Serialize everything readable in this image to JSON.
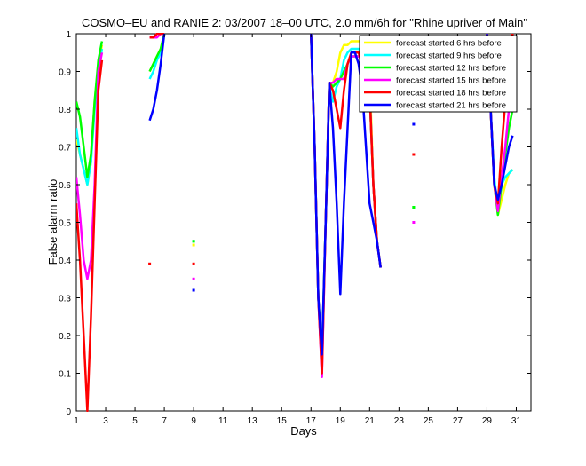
{
  "chart_data": {
    "type": "line",
    "title": "COSMO–EU and RANIE 2: 03/2007 18–00 UTC, 2.0 mm/6h for \"Rhine upriver of Main\"",
    "xlabel": "Days",
    "ylabel": "False alarm ratio",
    "xlim": [
      1,
      32
    ],
    "ylim": [
      0,
      1
    ],
    "xticks": [
      1,
      3,
      5,
      7,
      9,
      11,
      13,
      15,
      17,
      19,
      21,
      23,
      25,
      27,
      29,
      31
    ],
    "yticks": [
      0,
      0.1,
      0.2,
      0.3,
      0.4,
      0.5,
      0.6,
      0.7,
      0.8,
      0.9,
      1
    ],
    "xtick_labels": [
      "1",
      "3",
      "5",
      "7",
      "9",
      "11",
      "13",
      "15",
      "17",
      "19",
      "21",
      "23",
      "25",
      "27",
      "29",
      "31"
    ],
    "ytick_labels": [
      "0",
      "0.1",
      "0.2",
      "0.3",
      "0.4",
      "0.5",
      "0.6",
      "0.7",
      "0.8",
      "0.9",
      "1"
    ],
    "grid": false,
    "legend_position": "top-right",
    "series": [
      {
        "name": "forecast started 6 hrs before",
        "color": "#ffff00",
        "segments": [
          [
            [
              1,
              0.72
            ],
            [
              1.25,
              0.68
            ],
            [
              1.5,
              0.64
            ],
            [
              1.75,
              0.6
            ],
            [
              2,
              0.66
            ],
            [
              2.25,
              0.82
            ],
            [
              2.5,
              0.92
            ],
            [
              2.75,
              0.97
            ]
          ],
          [
            [
              6,
              0.9
            ],
            [
              6.25,
              0.92
            ],
            [
              6.5,
              0.94
            ],
            [
              6.75,
              0.96
            ],
            [
              7,
              1.0
            ]
          ],
          [
            [
              17,
              1.0
            ],
            [
              17.25,
              0.7
            ],
            [
              17.5,
              0.3
            ],
            [
              17.75,
              0.14
            ],
            [
              18,
              0.5
            ],
            [
              18.25,
              0.87
            ],
            [
              18.5,
              0.87
            ],
            [
              18.75,
              0.9
            ],
            [
              19,
              0.95
            ],
            [
              19.25,
              0.97
            ],
            [
              19.5,
              0.97
            ],
            [
              19.75,
              0.98
            ],
            [
              20,
              0.98
            ],
            [
              20.25,
              0.98
            ],
            [
              20.5,
              0.98
            ],
            [
              20.75,
              0.95
            ],
            [
              21,
              0.9
            ],
            [
              21.25,
              0.6
            ],
            [
              21.5,
              0.45
            ],
            [
              21.75,
              0.38
            ]
          ],
          [
            [
              29,
              1.0
            ],
            [
              29.25,
              0.8
            ],
            [
              29.5,
              0.6
            ],
            [
              29.75,
              0.52
            ],
            [
              30,
              0.56
            ],
            [
              30.25,
              0.6
            ],
            [
              30.5,
              0.63
            ],
            [
              30.75,
              0.64
            ]
          ]
        ],
        "points": [
          [
            9,
            0.44
          ],
          [
            24,
            0.54
          ]
        ]
      },
      {
        "name": "forecast started 9 hrs before",
        "color": "#00ffff",
        "segments": [
          [
            [
              1,
              0.75
            ],
            [
              1.25,
              0.68
            ],
            [
              1.5,
              0.64
            ],
            [
              1.75,
              0.6
            ],
            [
              2,
              0.66
            ],
            [
              2.25,
              0.8
            ],
            [
              2.5,
              0.9
            ],
            [
              2.75,
              0.96
            ]
          ],
          [
            [
              6,
              0.88
            ],
            [
              6.25,
              0.9
            ],
            [
              6.5,
              0.93
            ],
            [
              6.75,
              0.95
            ],
            [
              7,
              1.0
            ]
          ],
          [
            [
              17,
              1.0
            ],
            [
              17.25,
              0.7
            ],
            [
              17.5,
              0.3
            ],
            [
              17.75,
              0.14
            ],
            [
              18,
              0.5
            ],
            [
              18.25,
              0.86
            ],
            [
              18.5,
              0.82
            ],
            [
              18.75,
              0.86
            ],
            [
              19,
              0.88
            ],
            [
              19.25,
              0.93
            ],
            [
              19.5,
              0.95
            ],
            [
              19.75,
              0.96
            ],
            [
              20,
              0.96
            ],
            [
              20.25,
              0.96
            ],
            [
              20.5,
              0.95
            ],
            [
              20.75,
              0.92
            ],
            [
              21,
              0.85
            ],
            [
              21.25,
              0.6
            ],
            [
              21.5,
              0.45
            ],
            [
              21.75,
              0.38
            ]
          ],
          [
            [
              29,
              1.0
            ],
            [
              29.25,
              0.8
            ],
            [
              29.5,
              0.62
            ],
            [
              29.75,
              0.53
            ],
            [
              30,
              0.6
            ],
            [
              30.25,
              0.62
            ],
            [
              30.5,
              0.63
            ],
            [
              30.75,
              0.64
            ]
          ]
        ],
        "points": [
          [
            9,
            0.45
          ],
          [
            24,
            0.54
          ]
        ]
      },
      {
        "name": "forecast started 12 hrs before",
        "color": "#00ff00",
        "segments": [
          [
            [
              1,
              0.82
            ],
            [
              1.25,
              0.78
            ],
            [
              1.5,
              0.7
            ],
            [
              1.75,
              0.62
            ],
            [
              2,
              0.68
            ],
            [
              2.25,
              0.82
            ],
            [
              2.5,
              0.93
            ],
            [
              2.75,
              0.98
            ]
          ],
          [
            [
              6,
              0.9
            ],
            [
              6.25,
              0.92
            ],
            [
              6.5,
              0.94
            ],
            [
              6.75,
              0.96
            ],
            [
              7,
              1.0
            ]
          ],
          [
            [
              17,
              1.0
            ],
            [
              17.25,
              0.7
            ],
            [
              17.5,
              0.3
            ],
            [
              17.75,
              0.14
            ],
            [
              18,
              0.5
            ],
            [
              18.25,
              0.87
            ],
            [
              18.5,
              0.86
            ],
            [
              18.75,
              0.87
            ],
            [
              19,
              0.88
            ],
            [
              19.25,
              0.9
            ],
            [
              19.5,
              0.92
            ],
            [
              19.75,
              0.94
            ],
            [
              20,
              0.94
            ],
            [
              20.25,
              0.94
            ],
            [
              20.5,
              0.93
            ],
            [
              20.75,
              0.9
            ],
            [
              21,
              0.85
            ],
            [
              21.25,
              0.6
            ],
            [
              21.5,
              0.45
            ],
            [
              21.75,
              0.38
            ]
          ],
          [
            [
              29,
              1.0
            ],
            [
              29.25,
              0.8
            ],
            [
              29.5,
              0.6
            ],
            [
              29.75,
              0.52
            ],
            [
              30,
              0.6
            ],
            [
              30.25,
              0.68
            ],
            [
              30.5,
              0.75
            ],
            [
              30.75,
              0.8
            ]
          ]
        ],
        "points": [
          [
            9,
            0.45
          ],
          [
            24,
            0.54
          ]
        ]
      },
      {
        "name": "forecast started 15 hrs before",
        "color": "#ff00ff",
        "segments": [
          [
            [
              1,
              0.62
            ],
            [
              1.25,
              0.52
            ],
            [
              1.5,
              0.4
            ],
            [
              1.75,
              0.35
            ],
            [
              2,
              0.4
            ],
            [
              2.25,
              0.6
            ],
            [
              2.5,
              0.9
            ],
            [
              2.75,
              0.95
            ]
          ],
          [
            [
              6,
              0.99
            ],
            [
              6.25,
              0.99
            ],
            [
              6.5,
              0.99
            ],
            [
              6.75,
              1.0
            ],
            [
              7,
              1.0
            ]
          ],
          [
            [
              17,
              1.0
            ],
            [
              17.25,
              0.7
            ],
            [
              17.5,
              0.3
            ],
            [
              17.75,
              0.09
            ],
            [
              18,
              0.5
            ],
            [
              18.25,
              0.87
            ],
            [
              18.5,
              0.87
            ],
            [
              18.75,
              0.88
            ],
            [
              19,
              0.88
            ],
            [
              19.25,
              0.88
            ],
            [
              19.5,
              0.92
            ],
            [
              19.75,
              0.94
            ],
            [
              20,
              0.94
            ],
            [
              20.25,
              0.94
            ],
            [
              20.5,
              0.93
            ],
            [
              20.75,
              0.9
            ],
            [
              21,
              0.85
            ],
            [
              21.25,
              0.6
            ],
            [
              21.5,
              0.45
            ],
            [
              21.75,
              0.38
            ]
          ],
          [
            [
              29,
              1.0
            ],
            [
              29.25,
              0.8
            ],
            [
              29.5,
              0.6
            ],
            [
              29.75,
              0.53
            ],
            [
              30,
              0.62
            ],
            [
              30.25,
              0.7
            ],
            [
              30.5,
              0.8
            ],
            [
              30.75,
              0.9
            ]
          ]
        ],
        "points": [
          [
            9,
            0.35
          ],
          [
            24,
            0.5
          ]
        ]
      },
      {
        "name": "forecast started 18 hrs before",
        "color": "#ff0000",
        "segments": [
          [
            [
              1,
              0.55
            ],
            [
              1.25,
              0.4
            ],
            [
              1.5,
              0.2
            ],
            [
              1.75,
              0.0
            ],
            [
              2,
              0.25
            ],
            [
              2.25,
              0.55
            ],
            [
              2.5,
              0.85
            ],
            [
              2.75,
              0.93
            ]
          ],
          [
            [
              6,
              0.99
            ],
            [
              6.25,
              0.99
            ],
            [
              6.5,
              1.0
            ],
            [
              6.75,
              1.0
            ],
            [
              7,
              1.0
            ]
          ],
          [
            [
              17,
              1.0
            ],
            [
              17.25,
              0.7
            ],
            [
              17.5,
              0.3
            ],
            [
              17.75,
              0.1
            ],
            [
              18,
              0.5
            ],
            [
              18.25,
              0.87
            ],
            [
              18.5,
              0.85
            ],
            [
              18.75,
              0.8
            ],
            [
              19,
              0.75
            ],
            [
              19.25,
              0.85
            ],
            [
              19.5,
              0.92
            ],
            [
              19.75,
              0.95
            ],
            [
              20,
              0.95
            ],
            [
              20.25,
              0.95
            ],
            [
              20.5,
              0.92
            ],
            [
              20.75,
              0.88
            ],
            [
              21,
              0.85
            ],
            [
              21.25,
              0.6
            ],
            [
              21.5,
              0.45
            ],
            [
              21.75,
              0.38
            ]
          ],
          [
            [
              29,
              1.0
            ],
            [
              29.25,
              0.8
            ],
            [
              29.5,
              0.6
            ],
            [
              29.75,
              0.55
            ],
            [
              30,
              0.7
            ],
            [
              30.25,
              0.82
            ],
            [
              30.5,
              0.92
            ],
            [
              30.75,
              1.0
            ]
          ]
        ],
        "points": [
          [
            6,
            0.39
          ],
          [
            9,
            0.39
          ],
          [
            24,
            0.68
          ]
        ]
      },
      {
        "name": "forecast started 21 hrs before",
        "color": "#0000ff",
        "segments": [
          [
            [
              6,
              0.77
            ],
            [
              6.25,
              0.8
            ],
            [
              6.5,
              0.85
            ],
            [
              6.75,
              0.92
            ],
            [
              7,
              1.0
            ]
          ],
          [
            [
              17,
              1.0
            ],
            [
              17.25,
              0.7
            ],
            [
              17.5,
              0.3
            ],
            [
              17.75,
              0.15
            ],
            [
              18,
              0.5
            ],
            [
              18.25,
              0.87
            ],
            [
              18.5,
              0.75
            ],
            [
              18.75,
              0.55
            ],
            [
              19,
              0.31
            ],
            [
              19.25,
              0.55
            ],
            [
              19.5,
              0.75
            ],
            [
              19.75,
              0.95
            ],
            [
              20,
              0.95
            ],
            [
              20.25,
              0.92
            ],
            [
              20.5,
              0.85
            ],
            [
              20.75,
              0.7
            ],
            [
              21,
              0.55
            ],
            [
              21.25,
              0.5
            ],
            [
              21.5,
              0.45
            ],
            [
              21.75,
              0.38
            ]
          ],
          [
            [
              29,
              1.0
            ],
            [
              29.25,
              0.8
            ],
            [
              29.5,
              0.6
            ],
            [
              29.75,
              0.56
            ],
            [
              30,
              0.6
            ],
            [
              30.25,
              0.65
            ],
            [
              30.5,
              0.7
            ],
            [
              30.75,
              0.73
            ]
          ]
        ],
        "points": [
          [
            9,
            0.32
          ],
          [
            24,
            0.76
          ]
        ]
      }
    ]
  }
}
